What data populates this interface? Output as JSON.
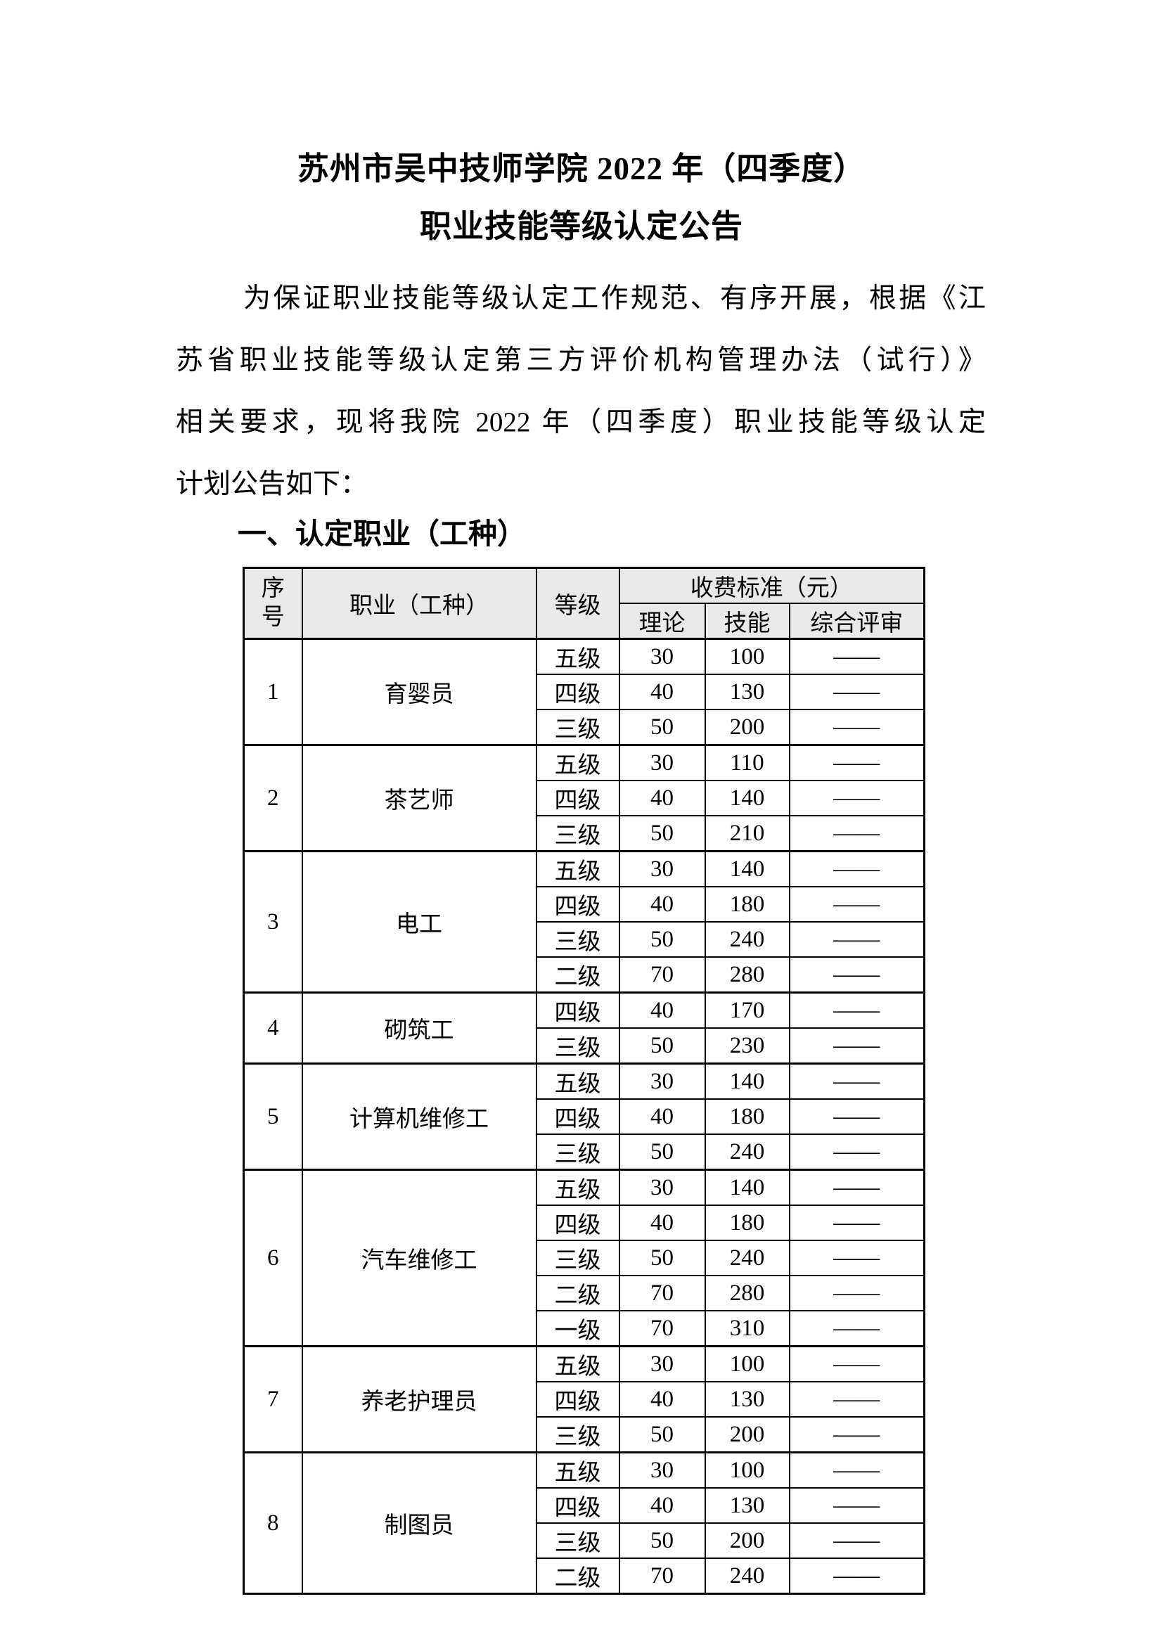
{
  "doc": {
    "title_line1": "苏州市吴中技师学院 2022 年（四季度）",
    "title_line2": "职业技能等级认定公告",
    "paragraph_lines": [
      "为保证职业技能等级认定工作规范、有序开展，根据《江",
      "苏省职业技能等级认定第三方评价机构管理办法（试行）》",
      "相关要求，现将我院 2022 年（四季度）职业技能等级认定",
      "计划公告如下："
    ],
    "section_heading": "一、认定职业（工种）"
  },
  "table": {
    "header": {
      "seq": "序号",
      "occupation": "职业（工种）",
      "level": "等级",
      "fee_standard": "收费标准（元）",
      "theory": "理论",
      "skill": "技能",
      "review": "综合评审"
    },
    "groups": [
      {
        "seq": "1",
        "occupation": "育婴员",
        "rows": [
          [
            "五级",
            "30",
            "100",
            "——"
          ],
          [
            "四级",
            "40",
            "130",
            "——"
          ],
          [
            "三级",
            "50",
            "200",
            "——"
          ]
        ]
      },
      {
        "seq": "2",
        "occupation": "茶艺师",
        "rows": [
          [
            "五级",
            "30",
            "110",
            "——"
          ],
          [
            "四级",
            "40",
            "140",
            "——"
          ],
          [
            "三级",
            "50",
            "210",
            "——"
          ]
        ]
      },
      {
        "seq": "3",
        "occupation": "电工",
        "rows": [
          [
            "五级",
            "30",
            "140",
            "——"
          ],
          [
            "四级",
            "40",
            "180",
            "——"
          ],
          [
            "三级",
            "50",
            "240",
            "——"
          ],
          [
            "二级",
            "70",
            "280",
            "——"
          ]
        ]
      },
      {
        "seq": "4",
        "occupation": "砌筑工",
        "rows": [
          [
            "四级",
            "40",
            "170",
            "——"
          ],
          [
            "三级",
            "50",
            "230",
            "——"
          ]
        ]
      },
      {
        "seq": "5",
        "occupation": "计算机维修工",
        "rows": [
          [
            "五级",
            "30",
            "140",
            "——"
          ],
          [
            "四级",
            "40",
            "180",
            "——"
          ],
          [
            "三级",
            "50",
            "240",
            "——"
          ]
        ]
      },
      {
        "seq": "6",
        "occupation": "汽车维修工",
        "rows": [
          [
            "五级",
            "30",
            "140",
            "——"
          ],
          [
            "四级",
            "40",
            "180",
            "——"
          ],
          [
            "三级",
            "50",
            "240",
            "——"
          ],
          [
            "二级",
            "70",
            "280",
            "——"
          ],
          [
            "一级",
            "70",
            "310",
            "——"
          ]
        ]
      },
      {
        "seq": "7",
        "occupation": "养老护理员",
        "rows": [
          [
            "五级",
            "30",
            "100",
            "——"
          ],
          [
            "四级",
            "40",
            "130",
            "——"
          ],
          [
            "三级",
            "50",
            "200",
            "——"
          ]
        ]
      },
      {
        "seq": "8",
        "occupation": "制图员",
        "rows": [
          [
            "五级",
            "30",
            "100",
            "——"
          ],
          [
            "四级",
            "40",
            "130",
            "——"
          ],
          [
            "三级",
            "50",
            "200",
            "——"
          ],
          [
            "二级",
            "70",
            "240",
            "——"
          ]
        ]
      }
    ]
  },
  "colors": {
    "page_bg": "#ffffff",
    "header_bg": "#e9e9e9",
    "border": "#000000",
    "text": "#000000"
  }
}
